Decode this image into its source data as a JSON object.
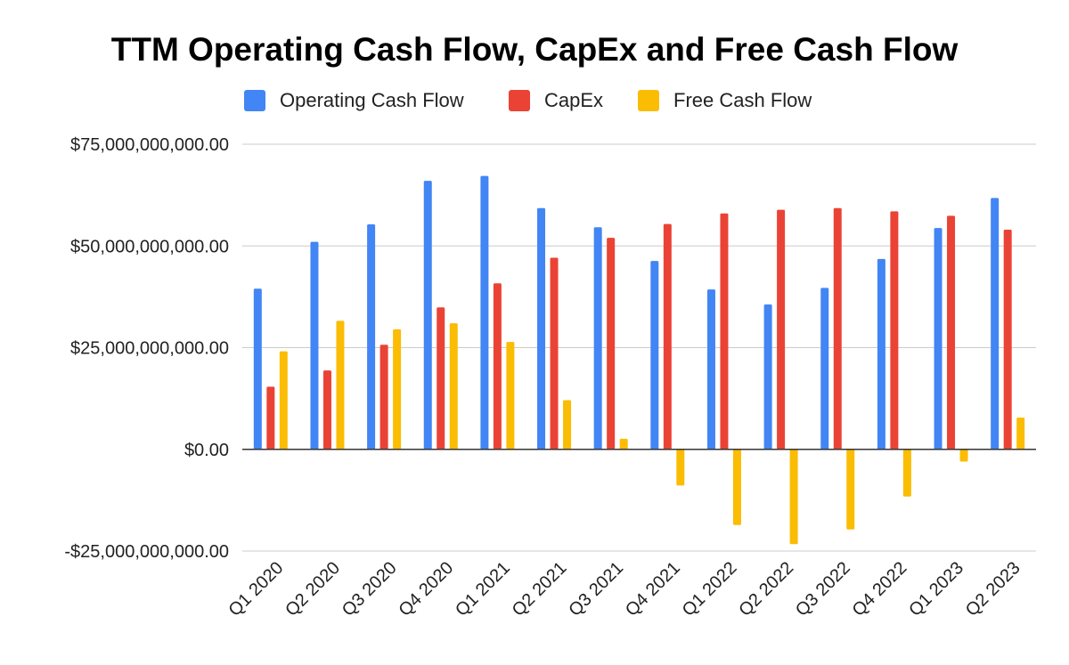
{
  "chart_data": {
    "type": "bar",
    "title": "TTM Operating Cash Flow, CapEx and Free Cash Flow",
    "xlabel": "",
    "ylabel": "",
    "ylim": [
      -25000000000,
      75000000000
    ],
    "yticks": [
      {
        "value": 75000000000,
        "label": "$75,000,000,000.00"
      },
      {
        "value": 50000000000,
        "label": "$50,000,000,000.00"
      },
      {
        "value": 25000000000,
        "label": "$25,000,000,000.00"
      },
      {
        "value": 0,
        "label": "$0.00"
      },
      {
        "value": -25000000000,
        "label": "-$25,000,000,000.00"
      }
    ],
    "legend_position": "top-center",
    "grid": true,
    "categories": [
      "Q1 2020",
      "Q2 2020",
      "Q3 2020",
      "Q4 2020",
      "Q1 2021",
      "Q2 2021",
      "Q3 2021",
      "Q4 2021",
      "Q1 2022",
      "Q2 2022",
      "Q3 2022",
      "Q4 2022",
      "Q1 2023",
      "Q2 2023"
    ],
    "series": [
      {
        "name": "Operating Cash Flow",
        "color": "#4285F4",
        "values": [
          39500000000,
          51000000000,
          55300000000,
          66000000000,
          67200000000,
          59300000000,
          54600000000,
          46300000000,
          39300000000,
          35600000000,
          39700000000,
          46800000000,
          54400000000,
          61800000000
        ]
      },
      {
        "name": "CapEx",
        "color": "#EA4335",
        "values": [
          15400000000,
          19400000000,
          25700000000,
          34900000000,
          40800000000,
          47100000000,
          52000000000,
          55400000000,
          58000000000,
          58900000000,
          59300000000,
          58500000000,
          57400000000,
          54000000000
        ]
      },
      {
        "name": "Free Cash Flow",
        "color": "#FBBC04",
        "values": [
          24100000000,
          31600000000,
          29500000000,
          31000000000,
          26400000000,
          12100000000,
          2600000000,
          -8900000000,
          -18600000000,
          -23300000000,
          -19700000000,
          -11600000000,
          -3000000000,
          7800000000
        ]
      }
    ]
  }
}
